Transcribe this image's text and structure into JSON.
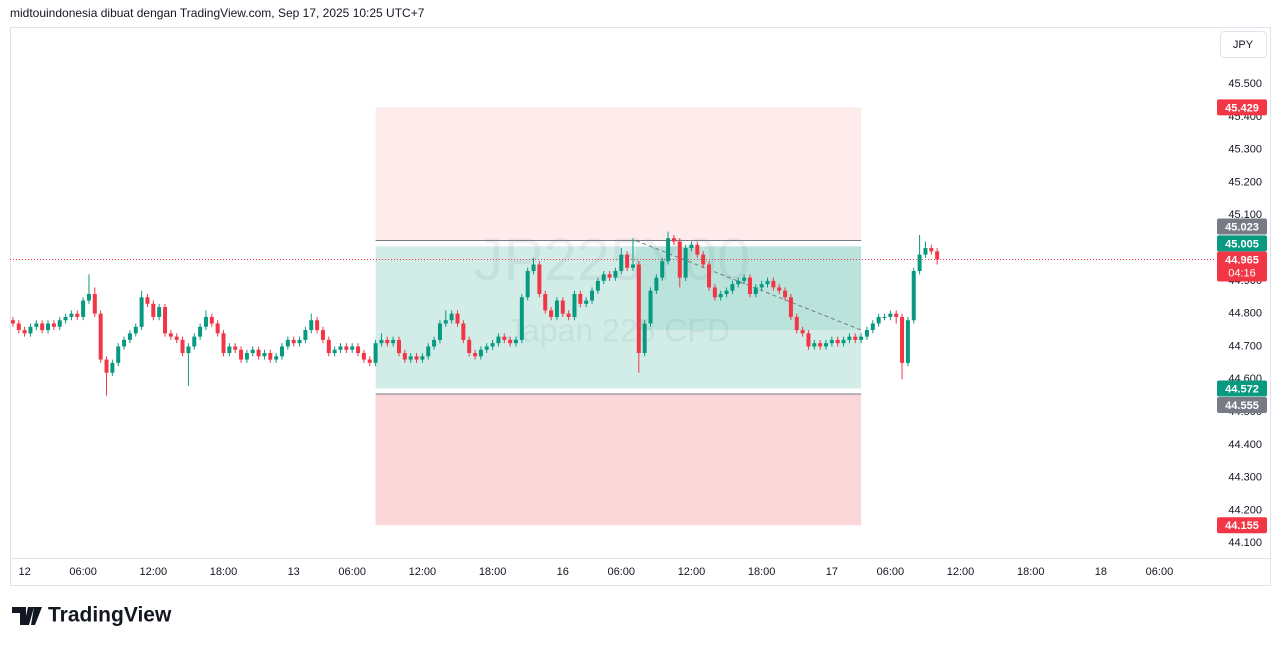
{
  "header": "midtouindonesia dibuat dengan TradingView.com, Sep 17, 2025 10:25 UTC+7",
  "logo": "TradingView",
  "chart_data": {
    "type": "candlestick",
    "currency": "JPY",
    "watermark": {
      "symbol": "JP225Y00",
      "description": "Japan 225 CFD"
    },
    "up_color": "#089981",
    "down_color": "#f23645",
    "xlim": [
      -2.5,
      203.5
    ],
    "ylim": [
      44.055,
      45.671
    ],
    "xticks": [
      {
        "value": 0,
        "label": "12"
      },
      {
        "value": 10,
        "label": "06:00"
      },
      {
        "value": 22,
        "label": "12:00"
      },
      {
        "value": 34,
        "label": "18:00"
      },
      {
        "value": 46,
        "label": "13"
      },
      {
        "value": 56,
        "label": "06:00"
      },
      {
        "value": 68,
        "label": "12:00"
      },
      {
        "value": 80,
        "label": "18:00"
      },
      {
        "value": 92,
        "label": "16"
      },
      {
        "value": 102,
        "label": "06:00"
      },
      {
        "value": 114,
        "label": "12:00"
      },
      {
        "value": 126,
        "label": "18:00"
      },
      {
        "value": 138,
        "label": "17"
      },
      {
        "value": 148,
        "label": "06:00"
      },
      {
        "value": 160,
        "label": "12:00"
      },
      {
        "value": 172,
        "label": "18:00"
      },
      {
        "value": 184,
        "label": "18"
      },
      {
        "value": 194,
        "label": "06:00"
      }
    ],
    "yticks": [
      {
        "value": 45.5,
        "label": "45.500"
      },
      {
        "value": 45.4,
        "label": "45.400"
      },
      {
        "value": 45.3,
        "label": "45.300"
      },
      {
        "value": 45.2,
        "label": "45.200"
      },
      {
        "value": 45.1,
        "label": "45.100"
      },
      {
        "value": 45.0,
        "label": "45.000"
      },
      {
        "value": 44.9,
        "label": "44.900"
      },
      {
        "value": 44.8,
        "label": "44.800"
      },
      {
        "value": 44.7,
        "label": "44.700"
      },
      {
        "value": 44.6,
        "label": "44.600"
      },
      {
        "value": 44.5,
        "label": "44.500"
      },
      {
        "value": 44.4,
        "label": "44.400"
      },
      {
        "value": 44.3,
        "label": "44.300"
      },
      {
        "value": 44.2,
        "label": "44.200"
      },
      {
        "value": 44.1,
        "label": "44.100"
      }
    ],
    "x": [
      -2,
      -1,
      0,
      1,
      2,
      3,
      4,
      5,
      6,
      7,
      8,
      9,
      10,
      11,
      12,
      13,
      14,
      15,
      16,
      17,
      18,
      19,
      20,
      21,
      22,
      23,
      24,
      25,
      26,
      27,
      28,
      29,
      30,
      31,
      32,
      33,
      34,
      35,
      36,
      37,
      38,
      39,
      40,
      41,
      42,
      43,
      44,
      45,
      46,
      47,
      48,
      49,
      50,
      51,
      52,
      53,
      54,
      55,
      56,
      57,
      58,
      59,
      60,
      61,
      62,
      63,
      64,
      65,
      66,
      67,
      68,
      69,
      70,
      71,
      72,
      73,
      74,
      75,
      76,
      77,
      78,
      79,
      80,
      81,
      82,
      83,
      84,
      85,
      86,
      87,
      88,
      89,
      90,
      91,
      92,
      93,
      94,
      95,
      96,
      97,
      98,
      99,
      100,
      101,
      102,
      103,
      104,
      105,
      106,
      107,
      108,
      109,
      110,
      111,
      112,
      113,
      114,
      115,
      116,
      117,
      118,
      119,
      120,
      121,
      122,
      123,
      124,
      125,
      126,
      127,
      128,
      129,
      130,
      131,
      132,
      133,
      134,
      135,
      136,
      137,
      138,
      139,
      140,
      141,
      142,
      143,
      144,
      145,
      146,
      147,
      148,
      149,
      150,
      151,
      152,
      153,
      154,
      155,
      156
    ],
    "open": [
      44.78,
      44.77,
      44.75,
      44.74,
      44.76,
      44.77,
      44.75,
      44.77,
      44.76,
      44.78,
      44.79,
      44.8,
      44.79,
      44.84,
      44.86,
      44.8,
      44.66,
      44.62,
      44.65,
      44.7,
      44.72,
      44.74,
      44.76,
      44.85,
      44.83,
      44.79,
      44.82,
      44.74,
      44.73,
      44.72,
      44.68,
      44.7,
      44.73,
      44.76,
      44.79,
      44.77,
      44.74,
      44.68,
      44.7,
      44.69,
      44.66,
      44.68,
      44.69,
      44.67,
      44.68,
      44.66,
      44.67,
      44.7,
      44.72,
      44.71,
      44.72,
      44.75,
      44.78,
      44.75,
      44.72,
      44.68,
      44.69,
      44.7,
      44.69,
      44.7,
      44.68,
      44.66,
      44.65,
      44.71,
      44.72,
      44.71,
      44.72,
      44.68,
      44.66,
      44.67,
      44.66,
      44.67,
      44.7,
      44.72,
      44.77,
      44.78,
      44.8,
      44.77,
      44.72,
      44.68,
      44.67,
      44.69,
      44.7,
      44.71,
      44.73,
      44.72,
      44.71,
      44.72,
      44.85,
      44.93,
      44.95,
      44.86,
      44.81,
      44.79,
      44.84,
      44.8,
      44.79,
      44.86,
      44.83,
      44.84,
      44.87,
      44.9,
      44.92,
      44.91,
      44.93,
      44.98,
      44.94,
      44.95,
      44.68,
      44.77,
      44.87,
      44.91,
      44.96,
      45.03,
      45.02,
      44.91,
      45.0,
      45.01,
      44.98,
      44.95,
      44.88,
      44.85,
      44.86,
      44.87,
      44.89,
      44.9,
      44.91,
      44.86,
      44.88,
      44.89,
      44.9,
      44.88,
      44.87,
      44.85,
      44.79,
      44.75,
      44.74,
      44.7,
      44.71,
      44.7,
      44.71,
      44.72,
      44.71,
      44.72,
      44.73,
      44.72,
      44.73,
      44.75,
      44.77,
      44.79,
      44.79,
      44.8,
      44.79,
      44.65,
      44.78,
      44.93,
      44.98,
      45.0,
      44.99
    ],
    "high": [
      44.79,
      44.78,
      44.76,
      44.77,
      44.78,
      44.78,
      44.78,
      44.78,
      44.79,
      44.8,
      44.81,
      44.81,
      44.85,
      44.92,
      44.88,
      44.81,
      44.67,
      44.66,
      44.71,
      44.73,
      44.75,
      44.77,
      44.87,
      44.86,
      44.84,
      44.83,
      44.83,
      44.75,
      44.74,
      44.73,
      44.71,
      44.74,
      44.77,
      44.81,
      44.8,
      44.78,
      44.75,
      44.71,
      44.71,
      44.7,
      44.69,
      44.7,
      44.7,
      44.69,
      44.69,
      44.68,
      44.71,
      44.73,
      44.73,
      44.73,
      44.76,
      44.8,
      44.79,
      44.76,
      44.73,
      44.7,
      44.71,
      44.71,
      44.71,
      44.71,
      44.69,
      44.67,
      44.72,
      44.74,
      44.73,
      44.73,
      44.73,
      44.69,
      44.68,
      44.68,
      44.68,
      44.71,
      44.73,
      44.78,
      44.81,
      44.81,
      44.81,
      44.78,
      44.73,
      44.69,
      44.7,
      44.71,
      44.72,
      44.74,
      44.74,
      44.73,
      44.73,
      44.86,
      44.94,
      44.97,
      44.96,
      44.87,
      44.82,
      44.85,
      44.85,
      44.81,
      44.87,
      44.87,
      44.85,
      44.88,
      44.91,
      44.93,
      44.93,
      44.94,
      45.0,
      44.99,
      45.03,
      44.96,
      44.78,
      44.88,
      44.92,
      44.97,
      45.05,
      45.04,
      45.03,
      45.01,
      45.02,
      45.02,
      44.99,
      44.96,
      44.89,
      44.87,
      44.88,
      44.9,
      44.91,
      44.92,
      44.92,
      44.89,
      44.9,
      44.91,
      44.91,
      44.89,
      44.88,
      44.86,
      44.8,
      44.76,
      44.75,
      44.72,
      44.72,
      44.72,
      44.73,
      44.73,
      44.73,
      44.74,
      44.74,
      44.74,
      44.76,
      44.78,
      44.8,
      44.8,
      44.81,
      44.81,
      44.8,
      44.79,
      44.94,
      45.04,
      45.02,
      45.01,
      45.0
    ],
    "low": [
      44.76,
      44.74,
      44.73,
      44.73,
      44.75,
      44.74,
      44.74,
      44.75,
      44.75,
      44.77,
      44.78,
      44.78,
      44.78,
      44.83,
      44.79,
      44.65,
      44.55,
      44.61,
      44.64,
      44.69,
      44.71,
      44.73,
      44.75,
      44.82,
      44.78,
      44.78,
      44.73,
      44.72,
      44.71,
      44.67,
      44.58,
      44.69,
      44.72,
      44.75,
      44.76,
      44.73,
      44.67,
      44.67,
      44.68,
      44.65,
      44.65,
      44.67,
      44.66,
      44.66,
      44.65,
      44.65,
      44.66,
      44.69,
      44.7,
      44.7,
      44.71,
      44.74,
      44.74,
      44.71,
      44.67,
      44.67,
      44.68,
      44.68,
      44.68,
      44.67,
      44.65,
      44.64,
      44.64,
      44.7,
      44.7,
      44.7,
      44.67,
      44.65,
      44.65,
      44.65,
      44.65,
      44.66,
      44.69,
      44.71,
      44.76,
      44.77,
      44.76,
      44.71,
      44.67,
      44.66,
      44.66,
      44.68,
      44.69,
      44.7,
      44.71,
      44.7,
      44.7,
      44.71,
      44.84,
      44.92,
      44.85,
      44.8,
      44.78,
      44.78,
      44.79,
      44.78,
      44.78,
      44.82,
      44.82,
      44.83,
      44.86,
      44.89,
      44.9,
      44.9,
      44.92,
      44.93,
      44.93,
      44.62,
      44.67,
      44.76,
      44.86,
      44.9,
      44.95,
      45.01,
      44.88,
      44.9,
      44.99,
      44.97,
      44.94,
      44.87,
      44.84,
      44.84,
      44.85,
      44.86,
      44.88,
      44.89,
      44.85,
      44.85,
      44.87,
      44.88,
      44.87,
      44.86,
      44.84,
      44.78,
      44.74,
      44.73,
      44.69,
      44.69,
      44.69,
      44.69,
      44.7,
      44.7,
      44.7,
      44.71,
      44.71,
      44.71,
      44.72,
      44.74,
      44.76,
      44.78,
      44.78,
      44.77,
      44.6,
      44.64,
      44.77,
      44.92,
      44.97,
      44.98,
      44.95
    ],
    "close": [
      44.77,
      44.75,
      44.74,
      44.76,
      44.77,
      44.75,
      44.77,
      44.76,
      44.78,
      44.79,
      44.8,
      44.79,
      44.84,
      44.86,
      44.8,
      44.66,
      44.62,
      44.65,
      44.7,
      44.72,
      44.74,
      44.76,
      44.85,
      44.83,
      44.79,
      44.82,
      44.74,
      44.73,
      44.72,
      44.68,
      44.7,
      44.73,
      44.76,
      44.79,
      44.77,
      44.74,
      44.68,
      44.7,
      44.69,
      44.66,
      44.68,
      44.69,
      44.67,
      44.68,
      44.66,
      44.67,
      44.7,
      44.72,
      44.71,
      44.72,
      44.75,
      44.78,
      44.75,
      44.72,
      44.68,
      44.69,
      44.7,
      44.69,
      44.7,
      44.68,
      44.66,
      44.65,
      44.71,
      44.72,
      44.71,
      44.72,
      44.68,
      44.66,
      44.67,
      44.66,
      44.67,
      44.7,
      44.72,
      44.77,
      44.78,
      44.8,
      44.77,
      44.72,
      44.68,
      44.67,
      44.69,
      44.7,
      44.71,
      44.73,
      44.72,
      44.71,
      44.72,
      44.85,
      44.93,
      44.95,
      44.86,
      44.81,
      44.79,
      44.84,
      44.8,
      44.79,
      44.86,
      44.83,
      44.84,
      44.87,
      44.9,
      44.92,
      44.91,
      44.93,
      44.98,
      44.94,
      44.95,
      44.68,
      44.77,
      44.87,
      44.91,
      44.96,
      45.03,
      45.02,
      44.91,
      45.0,
      45.01,
      44.98,
      44.95,
      44.88,
      44.85,
      44.86,
      44.87,
      44.89,
      44.9,
      44.91,
      44.86,
      44.88,
      44.89,
      44.9,
      44.88,
      44.87,
      44.85,
      44.79,
      44.75,
      44.74,
      44.7,
      44.71,
      44.7,
      44.71,
      44.72,
      44.71,
      44.72,
      44.73,
      44.72,
      44.73,
      44.75,
      44.77,
      44.79,
      44.79,
      44.8,
      44.79,
      44.65,
      44.78,
      44.93,
      44.98,
      45.0,
      44.99,
      44.965
    ],
    "countdown": "04:16",
    "last_price_color": "#f23645",
    "price_labels": [
      {
        "value": 45.429,
        "color": "#f23645"
      },
      {
        "value": 45.023,
        "color": "#787b86"
      },
      {
        "value": 45.005,
        "color": "#089981"
      },
      {
        "value": 44.572,
        "color": "#089981"
      },
      {
        "value": 44.555,
        "color": "#787b86"
      },
      {
        "value": 44.155,
        "color": "#f23645"
      }
    ],
    "position_tool": {
      "x": [
        60,
        143
      ],
      "trend_x": [
        104.5,
        143
      ],
      "trend_y": [
        45.023,
        44.75
      ]
    }
  }
}
